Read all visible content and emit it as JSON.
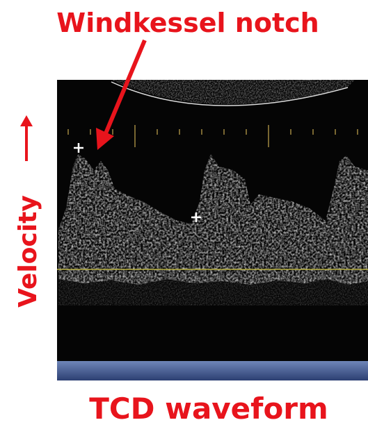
{
  "annotation": {
    "label": "Windkessel notch"
  },
  "axis": {
    "label": "Velocity"
  },
  "caption": {
    "text": "TCD waveform"
  }
}
